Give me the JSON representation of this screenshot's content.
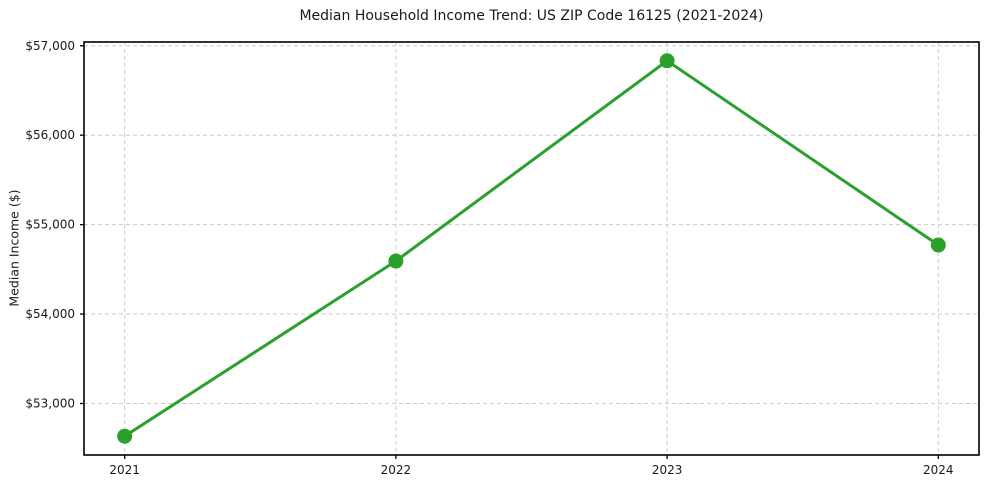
{
  "chart_data": {
    "type": "line",
    "title": "Median Household Income Trend: US ZIP Code 16125 (2021-2024)",
    "xlabel": "",
    "ylabel": "Median Income ($)",
    "x": [
      2021,
      2022,
      2023,
      2024
    ],
    "values": [
      52634,
      54593,
      56832,
      54772
    ],
    "xticks": [
      {
        "value": 2021,
        "label": "2021"
      },
      {
        "value": 2022,
        "label": "2022"
      },
      {
        "value": 2023,
        "label": "2023"
      },
      {
        "value": 2024,
        "label": "2024"
      }
    ],
    "yticks": [
      {
        "value": 53000,
        "label": "$53,000"
      },
      {
        "value": 54000,
        "label": "$54,000"
      },
      {
        "value": 55000,
        "label": "$55,000"
      },
      {
        "value": 56000,
        "label": "$56,000"
      },
      {
        "value": 57000,
        "label": "$57,000"
      }
    ],
    "xlim": [
      2020.85,
      2024.15
    ],
    "ylim": [
      52424,
      57042
    ],
    "grid": true,
    "legend": "none",
    "style": {
      "line_color": "#2ca02c",
      "line_width": 3,
      "marker": "circle",
      "marker_diameter_px": 15,
      "grid_color": "#cccccc",
      "grid_dash": "4 3",
      "axis_color": "#000000",
      "text_color": "#1a1a1a",
      "background": "#ffffff"
    }
  }
}
